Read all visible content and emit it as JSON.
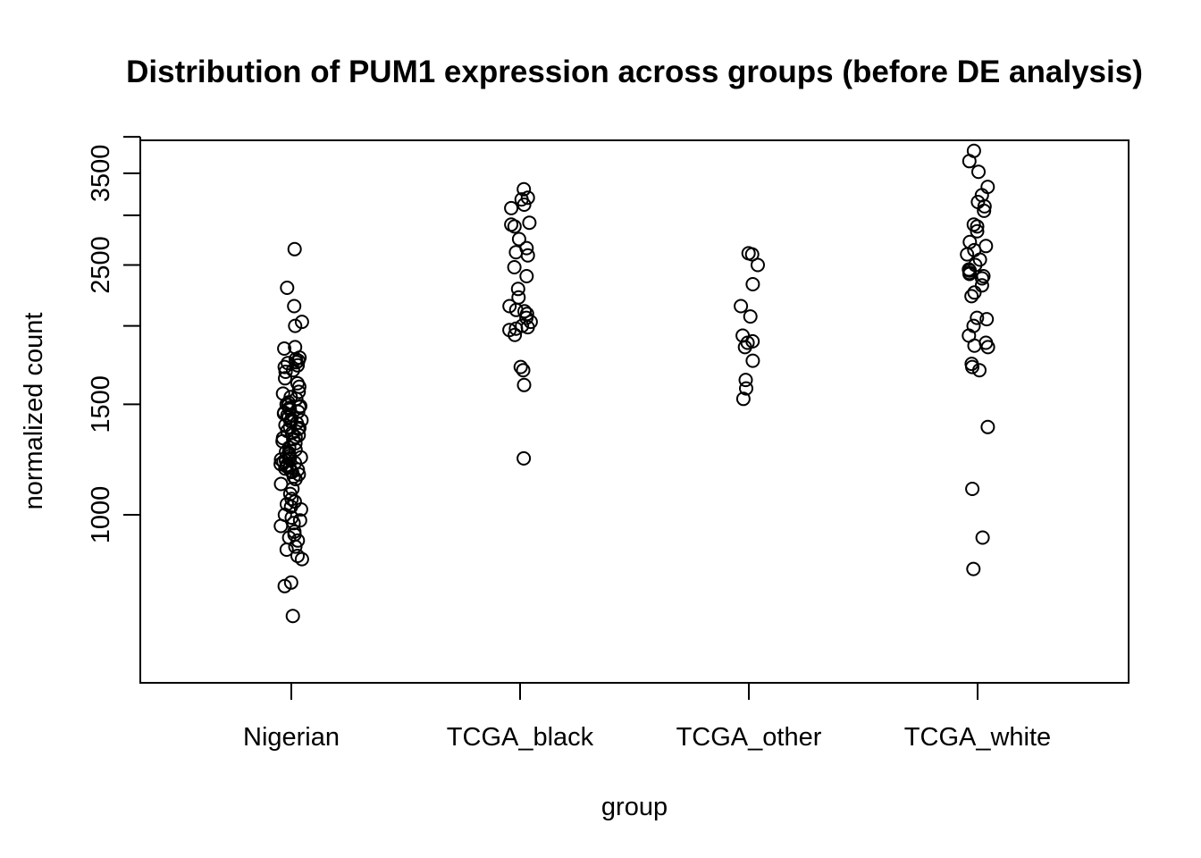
{
  "chart_data": {
    "type": "scatter",
    "style": "stripchart-jitter",
    "title": "Distribution of PUM1 expression across groups (before DE analysis)",
    "xlabel": "group",
    "ylabel": "normalized count",
    "y_scale": "log",
    "ylim": [
      540,
      3950
    ],
    "y_ticks_labeled": [
      1000,
      1500,
      2500,
      3500
    ],
    "y_ticks_minor": [
      2000,
      3000,
      4000
    ],
    "categories": [
      "Nigerian",
      "TCGA_black",
      "TCGA_other",
      "TCGA_white"
    ],
    "marker": "open-circle",
    "grid": false,
    "legend": "none",
    "series": [
      {
        "category": "Nigerian",
        "values": [
          2650,
          2300,
          2150,
          2030,
          2000,
          1850,
          1840,
          1780,
          1770,
          1760,
          1750,
          1745,
          1730,
          1720,
          1700,
          1690,
          1650,
          1620,
          1600,
          1570,
          1560,
          1540,
          1530,
          1510,
          1500,
          1495,
          1490,
          1485,
          1480,
          1470,
          1460,
          1455,
          1450,
          1440,
          1430,
          1420,
          1415,
          1410,
          1400,
          1390,
          1380,
          1375,
          1370,
          1360,
          1350,
          1340,
          1330,
          1325,
          1320,
          1310,
          1300,
          1280,
          1270,
          1260,
          1255,
          1250,
          1240,
          1235,
          1230,
          1225,
          1220,
          1215,
          1210,
          1205,
          1200,
          1195,
          1190,
          1185,
          1180,
          1175,
          1170,
          1160,
          1150,
          1140,
          1120,
          1100,
          1080,
          1060,
          1050,
          1040,
          1030,
          1020,
          1000,
          990,
          980,
          970,
          960,
          940,
          930,
          920,
          910,
          890,
          880,
          860,
          850,
          780,
          770,
          690
        ]
      },
      {
        "category": "TCGA_black",
        "values": [
          3300,
          3200,
          3180,
          3120,
          3080,
          2920,
          2900,
          2880,
          2750,
          2660,
          2620,
          2590,
          2480,
          2400,
          2290,
          2220,
          2150,
          2120,
          2110,
          2090,
          2060,
          2030,
          2000,
          1990,
          1980,
          1970,
          1935,
          1720,
          1700,
          1610,
          1230
        ]
      },
      {
        "category": "TCGA_other",
        "values": [
          2610,
          2600,
          2500,
          2330,
          2150,
          2070,
          1930,
          1890,
          1880,
          1850,
          1760,
          1640,
          1590,
          1530
        ]
      },
      {
        "category": "TCGA_white",
        "values": [
          3800,
          3660,
          3520,
          3330,
          3230,
          3150,
          3100,
          3050,
          2900,
          2880,
          2830,
          2720,
          2680,
          2640,
          2600,
          2550,
          2500,
          2460,
          2450,
          2430,
          2420,
          2400,
          2380,
          2320,
          2260,
          2230,
          2060,
          2050,
          2000,
          1930,
          1880,
          1860,
          1850,
          1740,
          1720,
          1700,
          1380,
          1100,
          920,
          820
        ]
      }
    ]
  }
}
